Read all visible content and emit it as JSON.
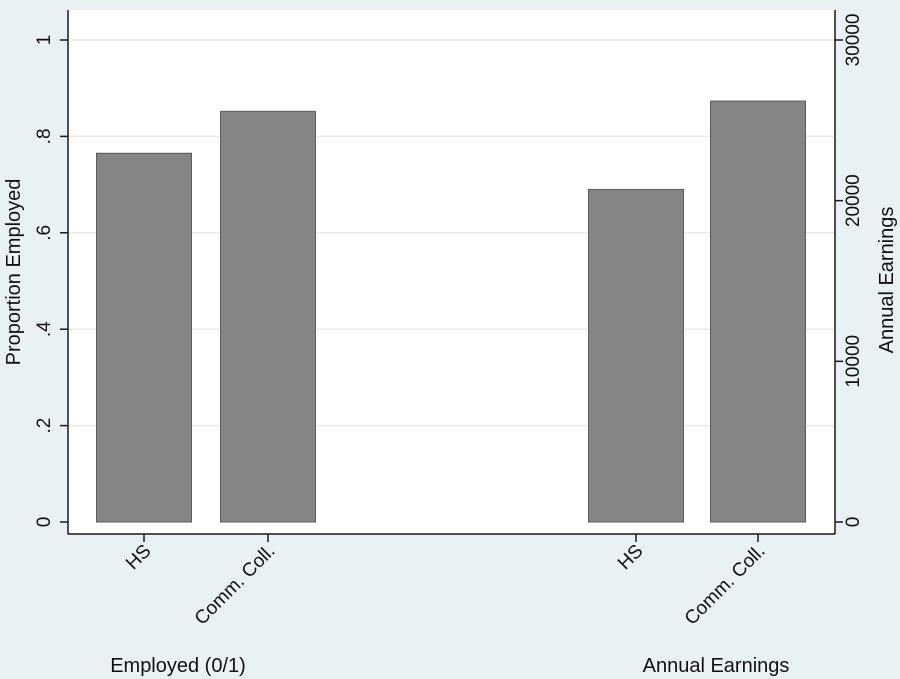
{
  "chart_data": {
    "type": "bar",
    "grid": true,
    "colors": {
      "outer_background": "#eaf1f5",
      "plot_background": "#ffffff",
      "bar_fill": "#858585",
      "bar_stroke": "#5c5c5c",
      "gridline": "#e5ebef",
      "axis": "#1a1a1a"
    },
    "left_axis": {
      "label": "Proportion Employed",
      "ylim": [
        0,
        1
      ],
      "ticks": [
        0,
        0.2,
        0.4,
        0.6,
        0.8,
        1
      ],
      "tick_labels": [
        "0",
        ".2",
        ".4",
        ".6",
        ".8",
        "1"
      ]
    },
    "right_axis": {
      "label": "Annual Earnings",
      "ylim": [
        0,
        30000
      ],
      "ticks": [
        0,
        10000,
        20000,
        30000
      ],
      "tick_labels": [
        "0",
        "10000",
        "20000",
        "30000"
      ]
    },
    "groups": [
      {
        "title": "Employed (0/1)",
        "axis": "left",
        "categories": [
          "HS",
          "Comm. Coll."
        ],
        "values": [
          0.765,
          0.852
        ]
      },
      {
        "title": "Annual Earnings",
        "axis": "right",
        "categories": [
          "HS",
          "Comm. Coll."
        ],
        "values": [
          20700,
          26200
        ]
      }
    ]
  }
}
